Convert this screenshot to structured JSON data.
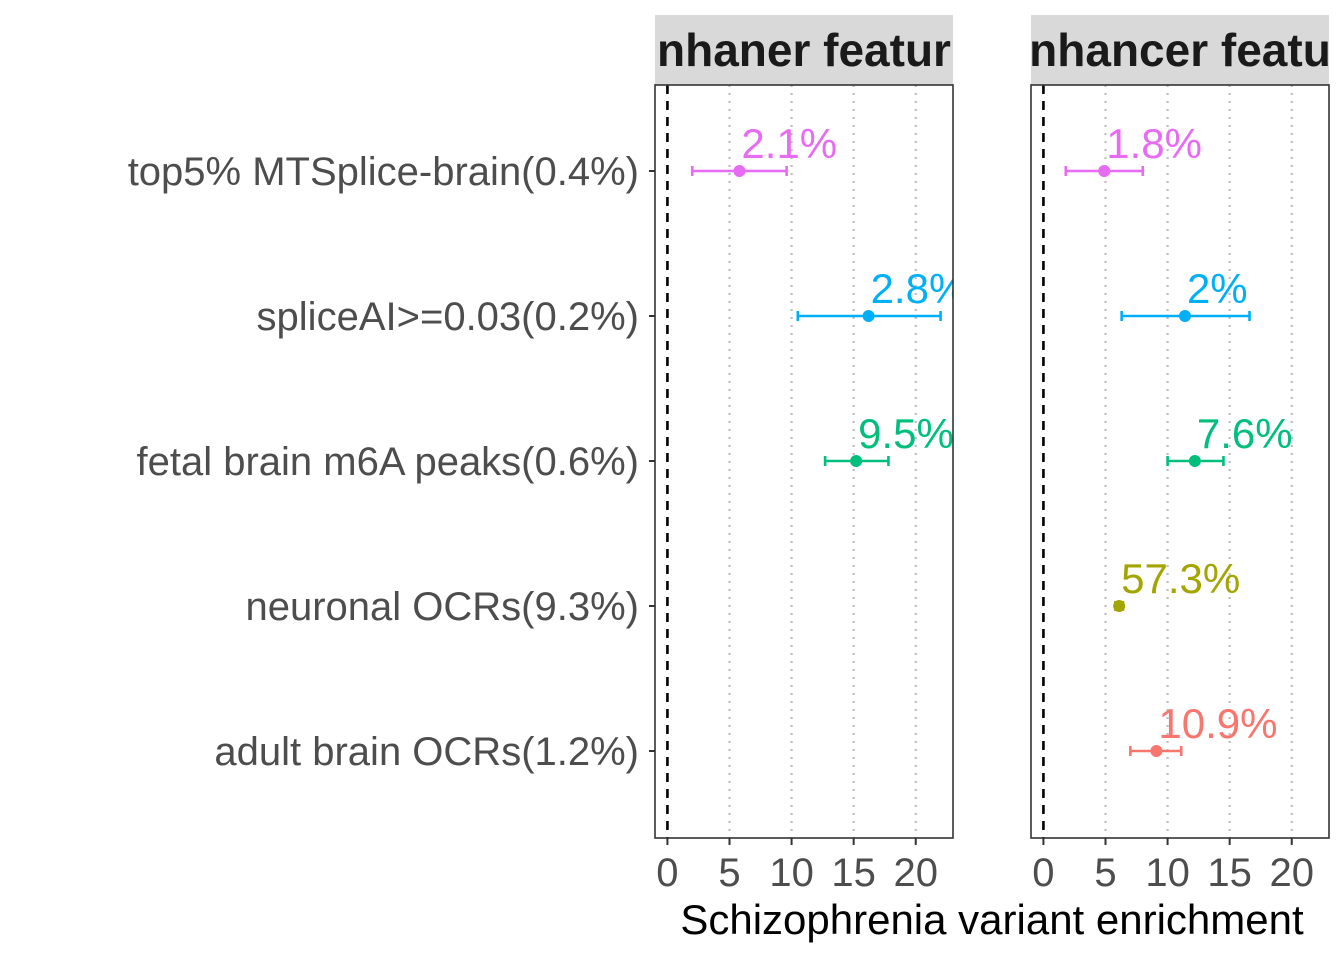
{
  "chart_data": {
    "type": "scatter",
    "subtype": "forest-plot-with-error-bars",
    "xlabel": "Schizophrenia variant enrichment",
    "xlim": [
      -1,
      23
    ],
    "xticks": [
      0,
      5,
      10,
      15,
      20
    ],
    "reference_line_x": 0,
    "grid": "vertical dotted at x ticks",
    "legend": "none",
    "categories": [
      "top5% MTSplice-brain(0.4%)",
      "spliceAI>=0.03(0.2%)",
      "fetal brain m6A peaks(0.6%)",
      "neuronal OCRs(9.3%)",
      "adult brain OCRs(1.2%)"
    ],
    "colors": {
      "top5% MTSplice-brain(0.4%)": "#E76BF3",
      "spliceAI>=0.03(0.2%)": "#00B0F6",
      "fetal brain m6A peaks(0.6%)": "#00BF7D",
      "neuronal OCRs(9.3%)": "#A3A500",
      "adult brain OCRs(1.2%)": "#F8766D"
    },
    "panels": [
      {
        "title": "nhaner featur",
        "points": [
          {
            "category": "top5% MTSplice-brain(0.4%)",
            "estimate": 5.8,
            "lower": 2.0,
            "upper": 9.6,
            "label": "2.1%"
          },
          {
            "category": "spliceAI>=0.03(0.2%)",
            "estimate": 16.2,
            "lower": 10.5,
            "upper": 22.0,
            "label": "2.8%"
          },
          {
            "category": "fetal brain m6A peaks(0.6%)",
            "estimate": 15.2,
            "lower": 12.7,
            "upper": 17.8,
            "label": "9.5%"
          }
        ]
      },
      {
        "title": "nhancer featu",
        "points": [
          {
            "category": "top5% MTSplice-brain(0.4%)",
            "estimate": 4.9,
            "lower": 1.8,
            "upper": 8.0,
            "label": "1.8%"
          },
          {
            "category": "spliceAI>=0.03(0.2%)",
            "estimate": 11.4,
            "lower": 6.3,
            "upper": 16.6,
            "label": "2%"
          },
          {
            "category": "fetal brain m6A peaks(0.6%)",
            "estimate": 12.2,
            "lower": 10.0,
            "upper": 14.5,
            "label": "7.6%"
          },
          {
            "category": "neuronal OCRs(9.3%)",
            "estimate": 6.1,
            "lower": 5.8,
            "upper": 6.4,
            "label": "57.3%"
          },
          {
            "category": "adult brain OCRs(1.2%)",
            "estimate": 9.1,
            "lower": 7.0,
            "upper": 11.1,
            "label": "10.9%"
          }
        ]
      }
    ]
  }
}
